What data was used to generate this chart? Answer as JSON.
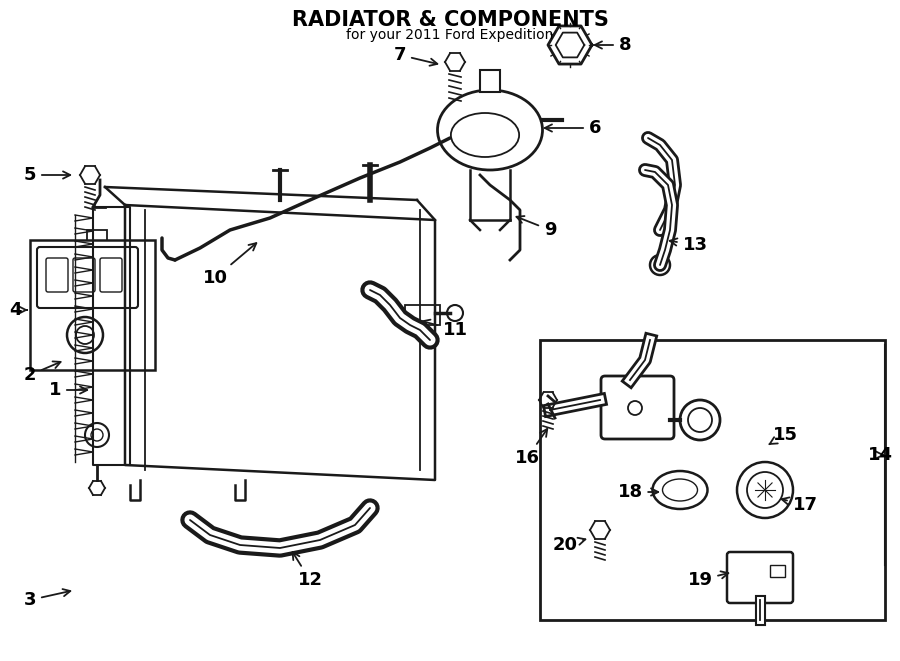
{
  "title": "RADIATOR & COMPONENTS",
  "subtitle": "for your 2011 Ford Expedition",
  "bg_color": "#ffffff",
  "line_color": "#1a1a1a",
  "text_color": "#000000",
  "label_fontsize": 12,
  "title_fontsize": 12
}
